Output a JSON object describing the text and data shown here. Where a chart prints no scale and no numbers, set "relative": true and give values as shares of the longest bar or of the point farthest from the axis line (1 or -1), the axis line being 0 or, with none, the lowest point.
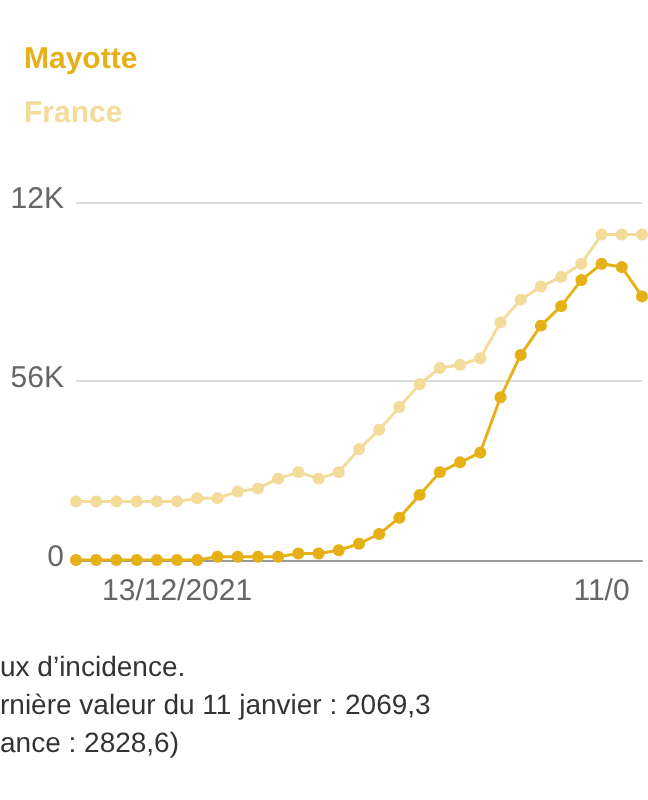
{
  "chart_data": {
    "type": "line",
    "relative": true,
    "categories": [
      null,
      null,
      null,
      null,
      null,
      "13/12/2021",
      null,
      null,
      null,
      null,
      null,
      null,
      null,
      null,
      null,
      null,
      null,
      null,
      null,
      null,
      null,
      null,
      null,
      null,
      null,
      null,
      "11/0",
      null,
      null
    ],
    "series": [
      {
        "name": "Mayotte",
        "color": "#e6b117",
        "values": [
          0,
          0,
          0,
          0,
          0,
          0,
          0,
          0.01,
          0.01,
          0.01,
          0.01,
          0.02,
          0.02,
          0.03,
          0.05,
          0.08,
          0.13,
          0.2,
          0.27,
          0.3,
          0.33,
          0.5,
          0.63,
          0.72,
          0.78,
          0.86,
          0.91,
          0.9,
          0.81
        ]
      },
      {
        "name": "France",
        "color": "#f3dc9a",
        "values": [
          0.18,
          0.18,
          0.18,
          0.18,
          0.18,
          0.18,
          0.19,
          0.19,
          0.21,
          0.22,
          0.25,
          0.27,
          0.25,
          0.27,
          0.34,
          0.4,
          0.47,
          0.54,
          0.59,
          0.6,
          0.62,
          0.73,
          0.8,
          0.84,
          0.87,
          0.91,
          1,
          1,
          1
        ]
      }
    ],
    "ref_lines": [
      {
        "axis": "y",
        "value": 0.55,
        "color": "#dddddd"
      },
      {
        "axis": "y",
        "value": 1.1,
        "color": "#dddddd"
      }
    ],
    "marker": "circle",
    "line_style": "solid",
    "annotations": [
      "12K",
      "56K",
      "0",
      "ux d’incidence.",
      "rnière valeur du 11 janvier : 2069,3",
      "ance : 2828,6)"
    ]
  }
}
